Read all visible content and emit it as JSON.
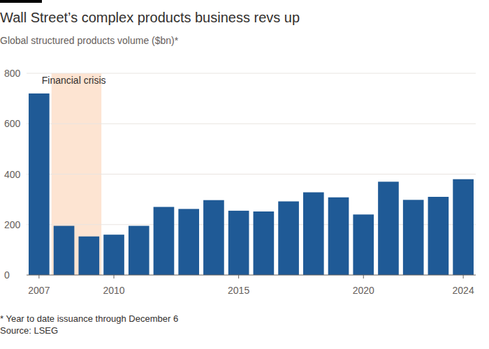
{
  "chart_data": {
    "type": "bar",
    "title": "Wall Street’s complex products business revs up",
    "subtitle": "Global structured products volume ($bn)*",
    "categories": [
      "2007",
      null,
      null,
      "2010",
      null,
      null,
      null,
      null,
      "2015",
      null,
      null,
      null,
      null,
      "2020",
      null,
      null,
      null,
      "2024"
    ],
    "values": [
      720,
      195,
      153,
      160,
      195,
      270,
      262,
      297,
      255,
      252,
      292,
      328,
      308,
      240,
      370,
      298,
      310,
      380
    ],
    "color": "#1f5a96",
    "ylim": [
      0,
      800
    ],
    "yticks": [
      0,
      200,
      400,
      600,
      800
    ],
    "grid": true,
    "annotations": [
      {
        "text": "Financial crisis",
        "x_start": 1,
        "x_end": 2
      }
    ],
    "footnote": "* Year to date issuance through December 6",
    "source": "Source: LSEG"
  }
}
